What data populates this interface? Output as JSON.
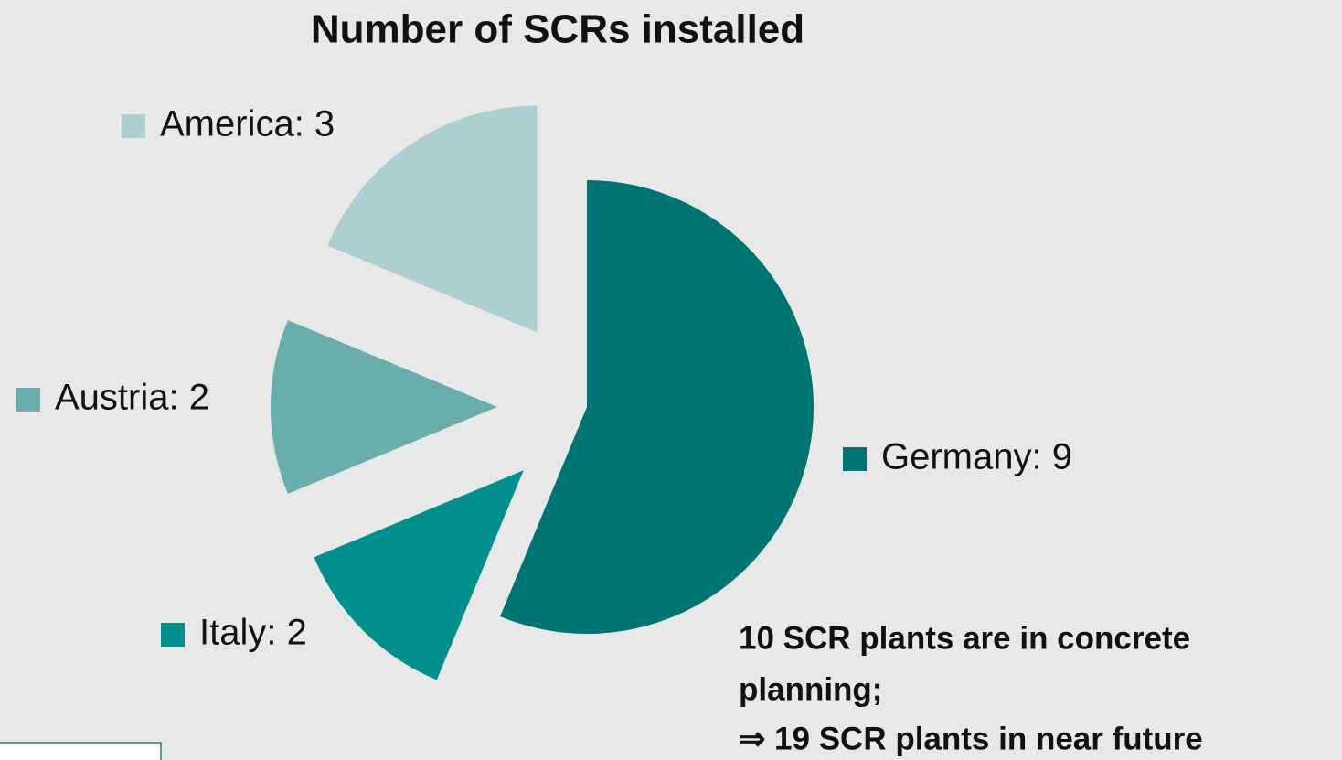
{
  "chart_data": {
    "type": "pie",
    "title": "Number of SCRs installed",
    "categories": [
      "Germany",
      "Italy",
      "Austria",
      "America"
    ],
    "values": [
      9,
      2,
      2,
      3
    ],
    "value_labels": [
      "Germany: 9",
      "Italy: 2",
      "Austria: 2",
      "America: 3"
    ],
    "colors": [
      "#007473",
      "#008f8c",
      "#6aadad",
      "#aecfcf"
    ],
    "annotations": [
      "10 SCR plants are in concrete",
      "planning;",
      "⇒ 19 SCR plants in near future"
    ]
  }
}
